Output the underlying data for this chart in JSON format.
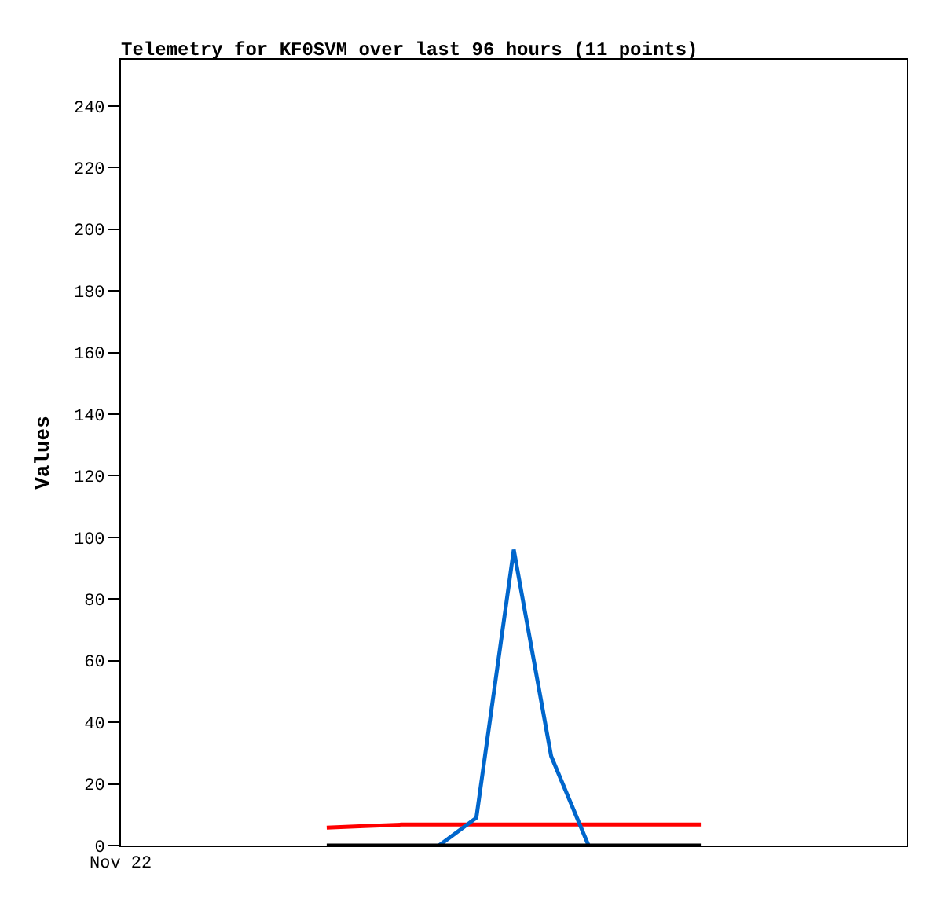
{
  "chart_data": {
    "type": "line",
    "title": "Telemetry for KF0SVM over last 96 hours (11 points)",
    "ylabel": "Values",
    "categories": [
      null,
      null,
      null,
      null,
      null,
      null,
      null,
      null,
      null,
      null,
      null,
      null,
      null,
      null,
      null,
      null,
      null,
      null,
      null,
      null,
      null
    ],
    "series": [
      {
        "color": "#ff0000",
        "values": [
          null,
          null,
          null,
          null,
          null,
          5.8,
          6.3,
          6.8,
          6.8,
          6.8,
          6.8,
          6.8,
          6.8,
          6.8,
          6.8,
          6.8,
          null,
          null,
          null,
          null,
          null
        ]
      },
      {
        "color": "#0066cc",
        "values": [
          null,
          null,
          null,
          null,
          null,
          null,
          null,
          null,
          0,
          9,
          96,
          29,
          0,
          null,
          null,
          null,
          null,
          null,
          null,
          null,
          null
        ]
      },
      {
        "color": "#000000",
        "values": [
          null,
          null,
          null,
          null,
          null,
          0,
          0,
          0,
          0,
          0,
          0,
          0,
          0,
          0,
          0,
          0,
          null,
          null,
          null,
          null,
          null
        ]
      }
    ],
    "annotations": [
      "Nov 22"
    ],
    "ylim": [
      0,
      255
    ],
    "yticks": [
      0,
      20,
      40,
      60,
      80,
      100,
      120,
      140,
      160,
      180,
      200,
      220,
      240
    ],
    "marker": "none",
    "line_style": "solid"
  }
}
